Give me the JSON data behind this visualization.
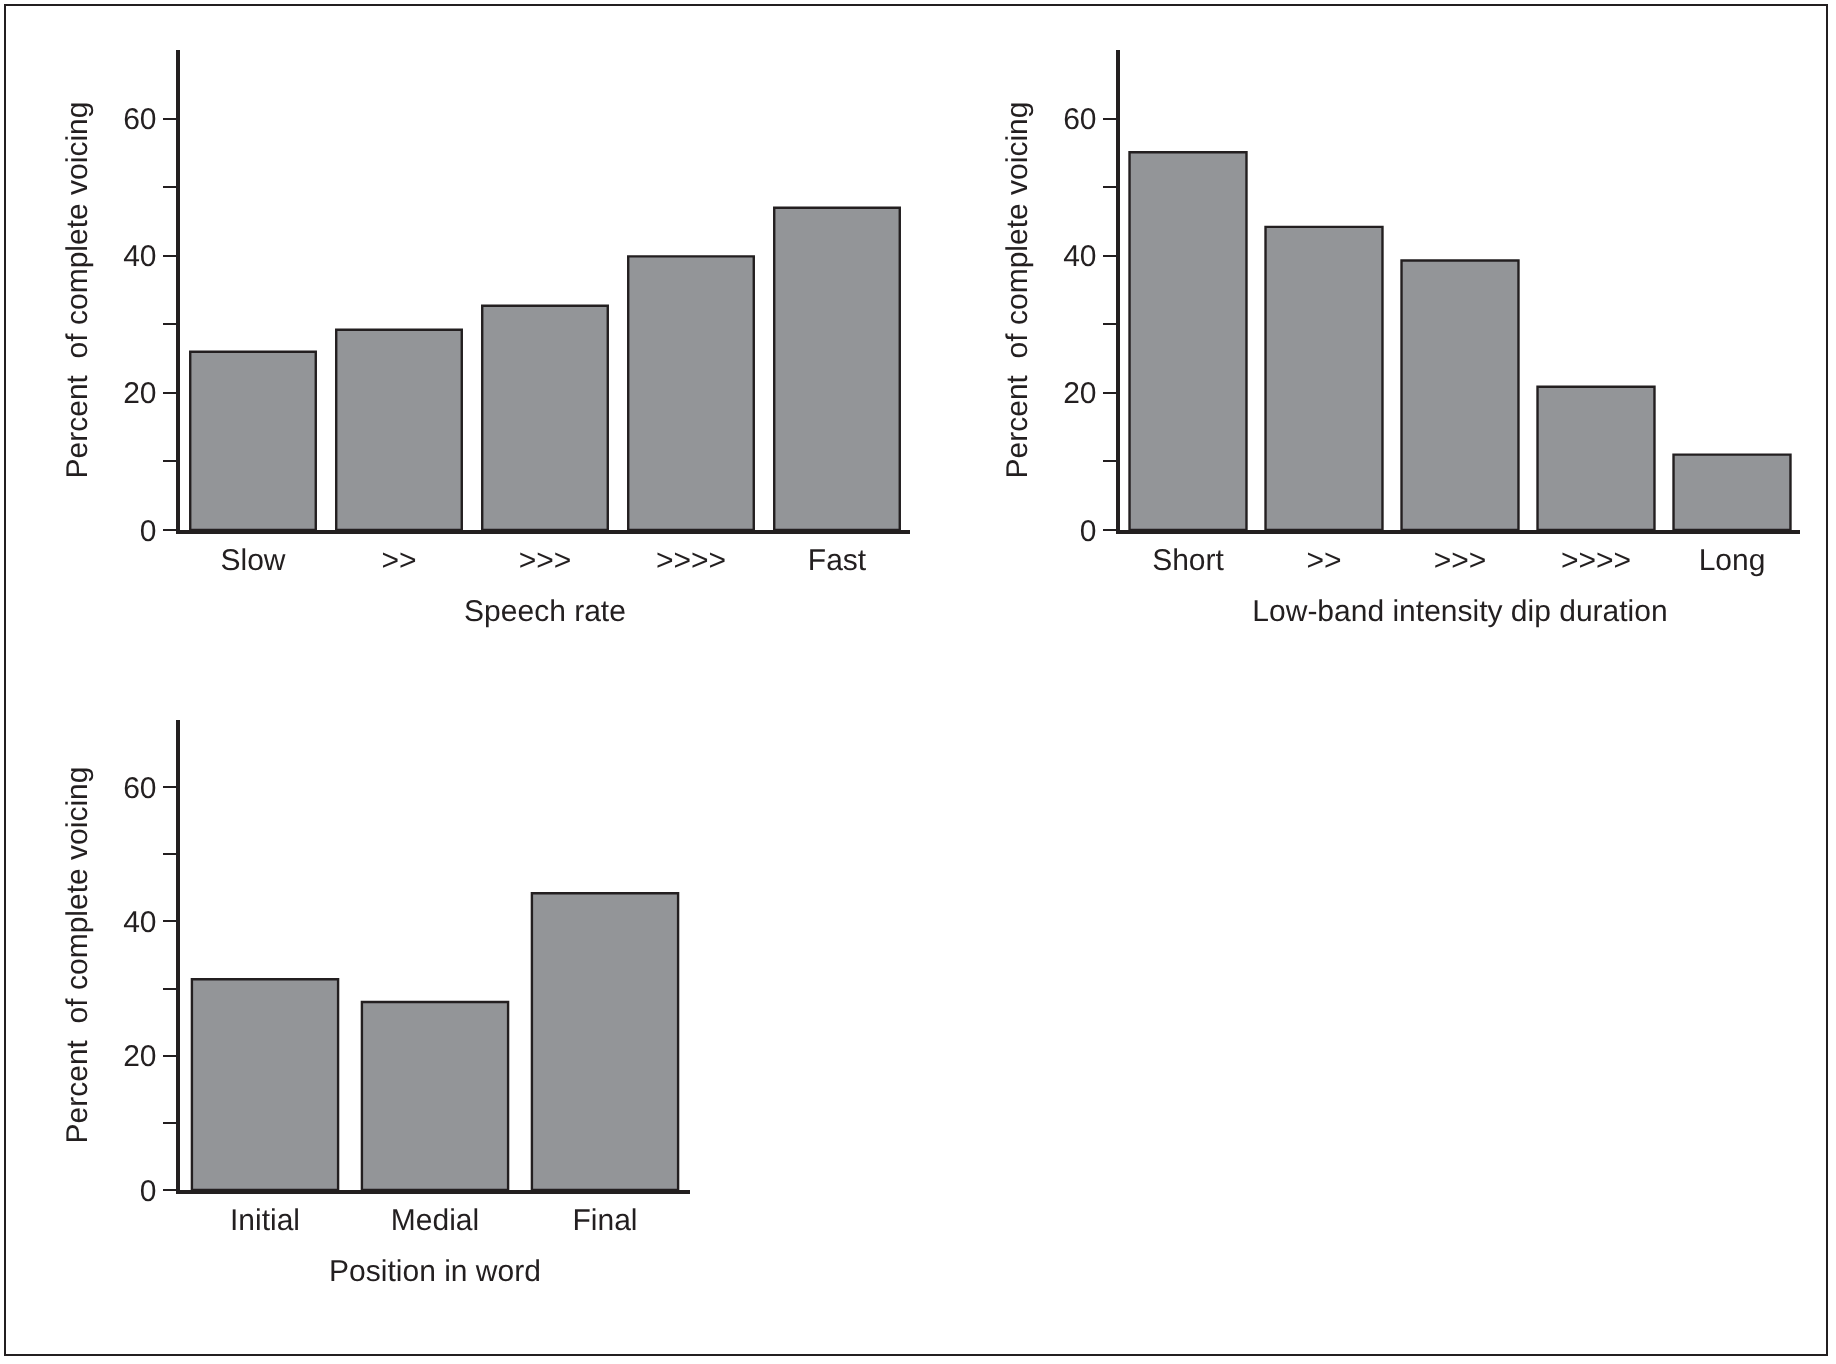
{
  "chart_data": [
    {
      "type": "bar",
      "xlabel": "Speech rate",
      "ylabel": "Percent  of complete voicing",
      "categories": [
        "Slow",
        ">>",
        ">>>",
        ">>>>",
        "Fast"
      ],
      "values": [
        26,
        29.2,
        32.7,
        39.9,
        47
      ],
      "color": "#939598",
      "ylim": [
        0,
        70
      ],
      "yticks": [
        0,
        {
          "value": 10,
          "label": null
        },
        20,
        {
          "value": 30,
          "label": null
        },
        40,
        {
          "value": 50,
          "label": null
        },
        60
      ]
    },
    {
      "type": "bar",
      "xlabel": "Low-band intensity dip duration",
      "ylabel": "Percent  of complete voicing",
      "categories": [
        "Short",
        ">>",
        ">>>",
        ">>>>",
        "Long"
      ],
      "values": [
        55.1,
        44.2,
        39.3,
        20.9,
        11
      ],
      "color": "#939598",
      "ylim": [
        0,
        70
      ],
      "yticks": [
        0,
        {
          "value": 10,
          "label": null
        },
        20,
        {
          "value": 30,
          "label": null
        },
        40,
        {
          "value": 50,
          "label": null
        },
        60
      ]
    },
    {
      "type": "bar",
      "xlabel": "Position in word",
      "ylabel": "Percent  of complete voicing",
      "categories": [
        "Initial",
        "Medial",
        "Final"
      ],
      "values": [
        31.4,
        28,
        44.2
      ],
      "color": "#939598",
      "ylim": [
        0,
        70
      ],
      "yticks": [
        0,
        {
          "value": 10,
          "label": null
        },
        20,
        {
          "value": 30,
          "label": null
        },
        40,
        {
          "value": 50,
          "label": null
        },
        60
      ]
    }
  ]
}
